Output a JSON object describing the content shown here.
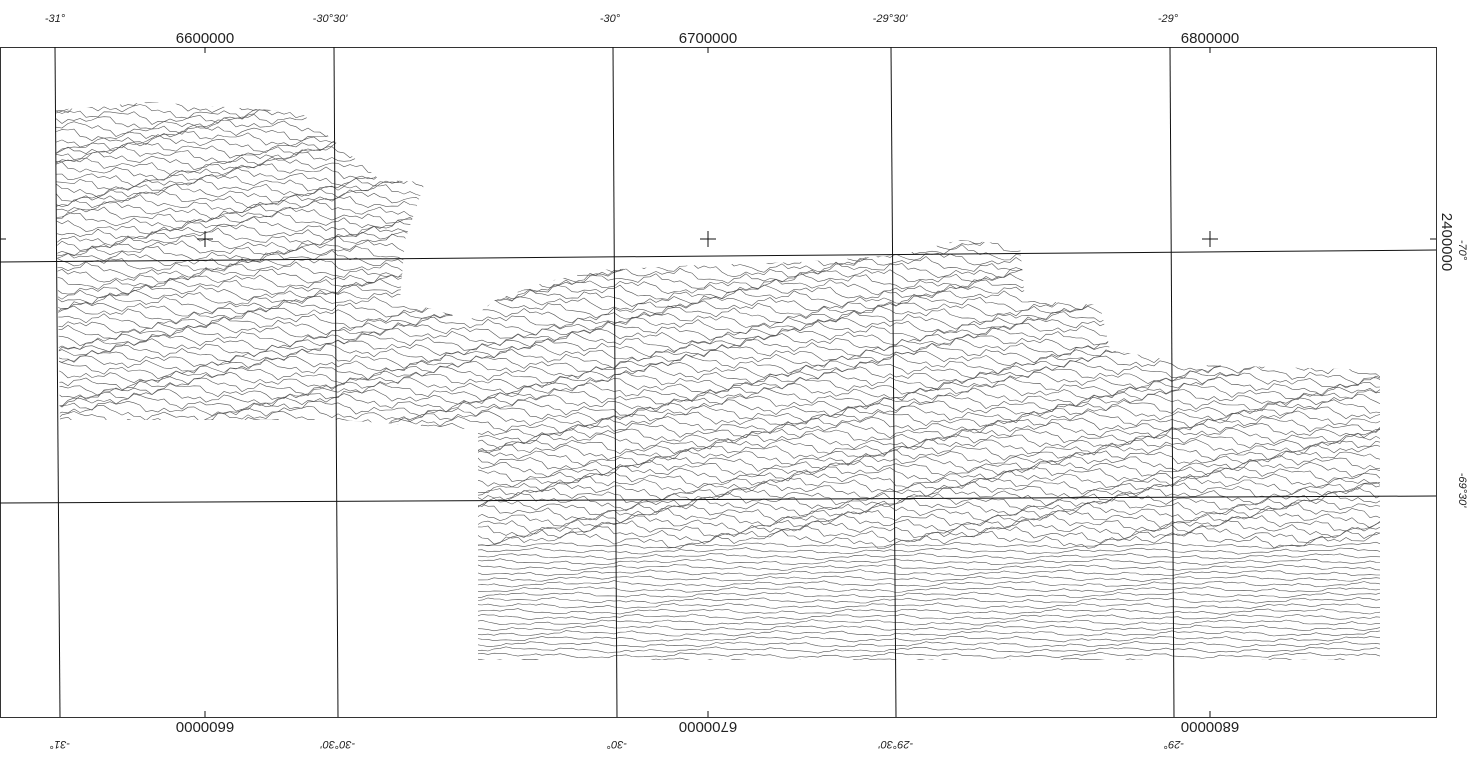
{
  "map": {
    "top": {
      "degrees": [
        "-31°",
        "-30°30'",
        "-30°",
        "-29°30'",
        "-29°"
      ],
      "eastings": [
        "6600000",
        "6700000",
        "6800000"
      ]
    },
    "bottom": {
      "degrees": [
        "-31°",
        "-30°30'",
        "-30°",
        "-29°30'",
        "-29°"
      ],
      "eastings": [
        "6600000",
        "6700000",
        "6800000"
      ]
    },
    "right": {
      "northing": "2400000",
      "degrees": [
        "-70°",
        "-69°30'"
      ]
    }
  }
}
